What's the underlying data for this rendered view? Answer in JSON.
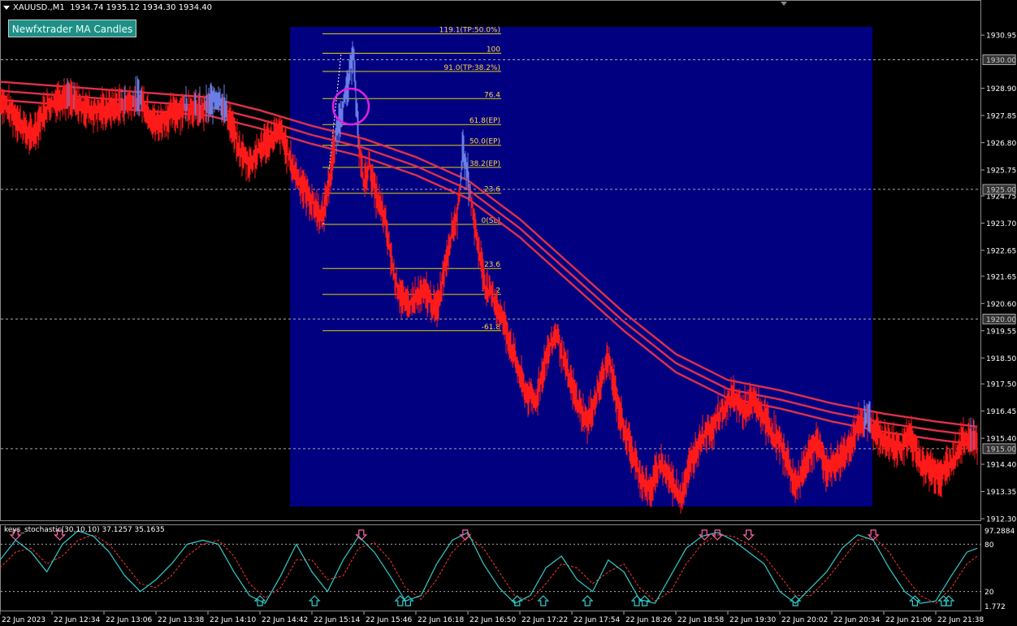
{
  "header": {
    "symbol": "XAUUSD.,M1",
    "ohlc": "1934.74 1935.12 1934.30 1934.40"
  },
  "button": {
    "label": "Newfxtrader MA Candles"
  },
  "indicator": {
    "title": "keys_stochastic(30,10,10) 37.1257 35.1635"
  },
  "colors": {
    "background": "#000000",
    "highlight_box": "#000080",
    "candles_bear": "#ff1a1a",
    "candles_bull": "#6a7fe6",
    "ma_band": "#e0304a",
    "ma_band_bull": "#33b6ff",
    "fib_lines": "#e6d200",
    "fib_text": "#ffd84a",
    "circle": "#e020e0",
    "stoch_main": "#33cccc",
    "stoch_signal": "#ff3333",
    "arrow_up": "#33cccc",
    "arrow_down": "#ff66aa"
  },
  "chart_data": {
    "type": "candlestick",
    "symbol": "XAUUSD.",
    "timeframe": "M1",
    "ylim": [
      1912.3,
      1931.3
    ],
    "yticks": [
      "1930.95",
      "1928.90",
      "1927.85",
      "1926.80",
      "1925.75",
      "1924.75",
      "1923.70",
      "1922.65",
      "1921.65",
      "1920.60",
      "1919.55",
      "1918.50",
      "1917.50",
      "1916.45",
      "1915.40",
      "1914.40",
      "1913.35",
      "1912.30"
    ],
    "price_markers": [
      "1930.00",
      "1925.00",
      "1920.00",
      "1915.00"
    ],
    "xticks": [
      "22 Jun 2023",
      "22 Jun 12:34",
      "22 Jun 13:06",
      "22 Jun 13:38",
      "22 Jun 14:10",
      "22 Jun 14:42",
      "22 Jun 15:14",
      "22 Jun 15:46",
      "22 Jun 16:18",
      "22 Jun 16:50",
      "22 Jun 17:22",
      "22 Jun 17:54",
      "22 Jun 18:26",
      "22 Jun 18:58",
      "22 Jun 19:30",
      "22 Jun 20:02",
      "22 Jun 20:34",
      "22 Jun 21:06",
      "22 Jun 21:38"
    ],
    "price_path": [
      [
        0,
        1928.5
      ],
      [
        0.3,
        1927.8
      ],
      [
        0.6,
        1927.0
      ],
      [
        0.9,
        1928.2
      ],
      [
        1.2,
        1928.6
      ],
      [
        1.5,
        1928.3
      ],
      [
        1.8,
        1928.0
      ],
      [
        2.1,
        1928.1
      ],
      [
        2.4,
        1928.3
      ],
      [
        2.7,
        1928.5
      ],
      [
        3.0,
        1927.5
      ],
      [
        3.3,
        1927.9
      ],
      [
        3.6,
        1928.2
      ],
      [
        3.9,
        1928.0
      ],
      [
        4.2,
        1928.6
      ],
      [
        4.4,
        1927.8
      ],
      [
        4.6,
        1926.5
      ],
      [
        4.8,
        1926.0
      ],
      [
        5.1,
        1926.8
      ],
      [
        5.4,
        1927.2
      ],
      [
        5.6,
        1926.0
      ],
      [
        5.8,
        1925.2
      ],
      [
        6.0,
        1924.5
      ],
      [
        6.2,
        1923.9
      ],
      [
        6.35,
        1925.5
      ],
      [
        6.5,
        1927.5
      ],
      [
        6.7,
        1929.0
      ],
      [
        6.8,
        1930.5
      ],
      [
        6.85,
        1928.3
      ],
      [
        6.9,
        1926.8
      ],
      [
        7.0,
        1925.2
      ],
      [
        7.1,
        1926.0
      ],
      [
        7.2,
        1925.0
      ],
      [
        7.4,
        1923.8
      ],
      [
        7.6,
        1921.5
      ],
      [
        7.8,
        1920.5
      ],
      [
        8.0,
        1920.8
      ],
      [
        8.2,
        1921.0
      ],
      [
        8.4,
        1920.3
      ],
      [
        8.55,
        1922.0
      ],
      [
        8.7,
        1923.5
      ],
      [
        8.8,
        1924.0
      ],
      [
        8.9,
        1926.5
      ],
      [
        9.0,
        1925.5
      ],
      [
        9.1,
        1924.0
      ],
      [
        9.2,
        1922.8
      ],
      [
        9.35,
        1921.2
      ],
      [
        9.5,
        1920.8
      ],
      [
        9.7,
        1919.8
      ],
      [
        9.9,
        1918.5
      ],
      [
        10.1,
        1917.2
      ],
      [
        10.3,
        1916.8
      ],
      [
        10.5,
        1918.5
      ],
      [
        10.7,
        1919.5
      ],
      [
        10.9,
        1918.0
      ],
      [
        11.1,
        1916.8
      ],
      [
        11.3,
        1916.0
      ],
      [
        11.5,
        1917.2
      ],
      [
        11.7,
        1918.5
      ],
      [
        11.9,
        1916.5
      ],
      [
        12.1,
        1915.2
      ],
      [
        12.3,
        1914.0
      ],
      [
        12.5,
        1913.3
      ],
      [
        12.7,
        1914.5
      ],
      [
        12.9,
        1913.8
      ],
      [
        13.1,
        1913.2
      ],
      [
        13.3,
        1914.5
      ],
      [
        13.5,
        1915.5
      ],
      [
        13.7,
        1915.8
      ],
      [
        13.9,
        1916.5
      ],
      [
        14.1,
        1917.0
      ],
      [
        14.3,
        1916.5
      ],
      [
        14.5,
        1916.8
      ],
      [
        14.7,
        1916.2
      ],
      [
        14.9,
        1915.5
      ],
      [
        15.1,
        1914.8
      ],
      [
        15.3,
        1913.5
      ],
      [
        15.5,
        1914.5
      ],
      [
        15.7,
        1915.3
      ],
      [
        15.9,
        1914.2
      ],
      [
        16.1,
        1914.5
      ],
      [
        16.3,
        1915.0
      ],
      [
        16.5,
        1915.8
      ],
      [
        16.7,
        1916.2
      ],
      [
        16.9,
        1915.5
      ],
      [
        17.1,
        1915.2
      ],
      [
        17.3,
        1915.0
      ],
      [
        17.5,
        1915.5
      ],
      [
        17.7,
        1914.5
      ],
      [
        17.9,
        1914.2
      ],
      [
        18.1,
        1914.0
      ],
      [
        18.3,
        1914.5
      ],
      [
        18.5,
        1915.2
      ],
      [
        18.65,
        1915.5
      ],
      [
        18.8,
        1915.2
      ]
    ],
    "ma_band": [
      [
        0,
        1928.8
      ],
      [
        2,
        1928.5
      ],
      [
        4,
        1928.2
      ],
      [
        5,
        1927.7
      ],
      [
        6,
        1927.1
      ],
      [
        7,
        1926.6
      ],
      [
        8,
        1925.9
      ],
      [
        9,
        1925.0
      ],
      [
        10,
        1923.5
      ],
      [
        11,
        1921.7
      ],
      [
        12,
        1919.9
      ],
      [
        13,
        1918.3
      ],
      [
        14,
        1917.3
      ],
      [
        15,
        1916.9
      ],
      [
        16,
        1916.4
      ],
      [
        17,
        1916.0
      ],
      [
        18,
        1915.7
      ],
      [
        18.8,
        1915.5
      ]
    ],
    "fibonacci": {
      "levels": [
        "119.1(TP:50.0%)",
        "100",
        "91.0(TP:38.2%)",
        "76.4",
        "61.8(EP)",
        "50.0(EP)",
        "38.2(EP)",
        "23.6",
        "0(SL)",
        "-23.6",
        "-38.2",
        "-61.8"
      ],
      "prices": [
        1931.0,
        1930.25,
        1929.55,
        1928.5,
        1927.5,
        1926.7,
        1925.85,
        1924.85,
        1923.65,
        1921.95,
        1920.95,
        1919.55
      ]
    },
    "stochastic": {
      "title": "keys_stochastic(30,10,10)",
      "main": 37.1257,
      "signal": 35.1635,
      "ylim": [
        0,
        100
      ],
      "yticks": [
        "97.2884",
        "80",
        "20",
        "1.772"
      ],
      "levels": [
        80,
        20
      ],
      "main_path": [
        [
          0,
          60
        ],
        [
          0.3,
          85
        ],
        [
          0.6,
          70
        ],
        [
          0.9,
          45
        ],
        [
          1.2,
          80
        ],
        [
          1.5,
          97
        ],
        [
          1.8,
          90
        ],
        [
          2.1,
          70
        ],
        [
          2.4,
          40
        ],
        [
          2.7,
          20
        ],
        [
          3.0,
          35
        ],
        [
          3.3,
          55
        ],
        [
          3.6,
          80
        ],
        [
          3.9,
          85
        ],
        [
          4.2,
          80
        ],
        [
          4.5,
          45
        ],
        [
          4.8,
          15
        ],
        [
          5.1,
          5
        ],
        [
          5.4,
          40
        ],
        [
          5.7,
          80
        ],
        [
          6.0,
          45
        ],
        [
          6.3,
          20
        ],
        [
          6.6,
          60
        ],
        [
          6.9,
          90
        ],
        [
          7.2,
          70
        ],
        [
          7.5,
          40
        ],
        [
          7.8,
          8
        ],
        [
          8.1,
          15
        ],
        [
          8.4,
          55
        ],
        [
          8.7,
          85
        ],
        [
          9.0,
          95
        ],
        [
          9.3,
          55
        ],
        [
          9.6,
          25
        ],
        [
          9.9,
          5
        ],
        [
          10.2,
          15
        ],
        [
          10.5,
          50
        ],
        [
          10.8,
          65
        ],
        [
          11.1,
          35
        ],
        [
          11.4,
          20
        ],
        [
          11.7,
          60
        ],
        [
          12.0,
          45
        ],
        [
          12.3,
          10
        ],
        [
          12.6,
          5
        ],
        [
          12.9,
          40
        ],
        [
          13.2,
          75
        ],
        [
          13.5,
          90
        ],
        [
          13.8,
          95
        ],
        [
          14.1,
          85
        ],
        [
          14.4,
          70
        ],
        [
          14.7,
          55
        ],
        [
          15.0,
          20
        ],
        [
          15.3,
          5
        ],
        [
          15.6,
          25
        ],
        [
          15.9,
          45
        ],
        [
          16.2,
          75
        ],
        [
          16.5,
          92
        ],
        [
          16.8,
          85
        ],
        [
          17.1,
          50
        ],
        [
          17.4,
          20
        ],
        [
          17.7,
          5
        ],
        [
          18.0,
          8
        ],
        [
          18.3,
          40
        ],
        [
          18.6,
          70
        ],
        [
          18.8,
          75
        ]
      ],
      "signal_path": [
        [
          0,
          50
        ],
        [
          0.3,
          70
        ],
        [
          0.6,
          75
        ],
        [
          0.9,
          55
        ],
        [
          1.2,
          65
        ],
        [
          1.5,
          85
        ],
        [
          1.8,
          92
        ],
        [
          2.1,
          80
        ],
        [
          2.4,
          55
        ],
        [
          2.7,
          30
        ],
        [
          3.0,
          25
        ],
        [
          3.3,
          40
        ],
        [
          3.6,
          65
        ],
        [
          3.9,
          80
        ],
        [
          4.2,
          85
        ],
        [
          4.5,
          65
        ],
        [
          4.8,
          30
        ],
        [
          5.1,
          12
        ],
        [
          5.4,
          25
        ],
        [
          5.7,
          60
        ],
        [
          6.0,
          60
        ],
        [
          6.3,
          35
        ],
        [
          6.6,
          40
        ],
        [
          6.9,
          75
        ],
        [
          7.2,
          82
        ],
        [
          7.5,
          60
        ],
        [
          7.8,
          25
        ],
        [
          8.1,
          10
        ],
        [
          8.4,
          35
        ],
        [
          8.7,
          70
        ],
        [
          9.0,
          90
        ],
        [
          9.3,
          75
        ],
        [
          9.6,
          45
        ],
        [
          9.9,
          15
        ],
        [
          10.2,
          8
        ],
        [
          10.5,
          30
        ],
        [
          10.8,
          55
        ],
        [
          11.1,
          50
        ],
        [
          11.4,
          30
        ],
        [
          11.7,
          45
        ],
        [
          12.0,
          55
        ],
        [
          12.3,
          25
        ],
        [
          12.6,
          8
        ],
        [
          12.9,
          20
        ],
        [
          13.2,
          55
        ],
        [
          13.5,
          80
        ],
        [
          13.8,
          92
        ],
        [
          14.1,
          90
        ],
        [
          14.4,
          80
        ],
        [
          14.7,
          65
        ],
        [
          15.0,
          40
        ],
        [
          15.3,
          15
        ],
        [
          15.6,
          15
        ],
        [
          15.9,
          35
        ],
        [
          16.2,
          60
        ],
        [
          16.5,
          85
        ],
        [
          16.8,
          90
        ],
        [
          17.1,
          70
        ],
        [
          17.4,
          40
        ],
        [
          17.7,
          15
        ],
        [
          18.0,
          5
        ],
        [
          18.3,
          25
        ],
        [
          18.6,
          55
        ],
        [
          18.8,
          65
        ]
      ],
      "up_arrows": [
        5.0,
        6.05,
        7.7,
        7.85,
        9.95,
        10.45,
        11.3,
        12.25,
        12.4,
        15.3,
        17.6,
        18.15,
        18.25
      ],
      "down_arrows": [
        0.3,
        1.15,
        6.95,
        8.95,
        13.55,
        13.8,
        14.4,
        16.8
      ]
    }
  }
}
